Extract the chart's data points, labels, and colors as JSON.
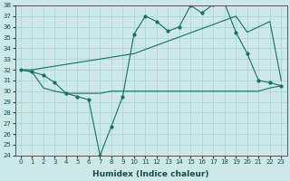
{
  "xlabel": "Humidex (Indice chaleur)",
  "bg_color": "#cce8e8",
  "line_color": "#1a6e60",
  "grid_color": "#a8d0d0",
  "xlim_min": -0.5,
  "xlim_max": 23.5,
  "ylim_min": 24,
  "ylim_max": 38,
  "xticks": [
    0,
    1,
    2,
    3,
    4,
    5,
    6,
    7,
    8,
    9,
    10,
    11,
    12,
    13,
    14,
    15,
    16,
    17,
    18,
    19,
    20,
    21,
    22,
    23
  ],
  "yticks": [
    24,
    25,
    26,
    27,
    28,
    29,
    30,
    31,
    32,
    33,
    34,
    35,
    36,
    37,
    38
  ],
  "line1_x": [
    0,
    1,
    2,
    3,
    4,
    5,
    6,
    7,
    8,
    9,
    10,
    11,
    12,
    13,
    14,
    15,
    16,
    17,
    18,
    19,
    20,
    21,
    22,
    23
  ],
  "line1_y": [
    32.0,
    31.8,
    31.5,
    30.8,
    29.8,
    29.5,
    29.2,
    24.0,
    26.7,
    29.5,
    35.3,
    37.0,
    36.5,
    35.6,
    36.0,
    38.0,
    37.3,
    38.1,
    38.2,
    35.5,
    33.5,
    31.0,
    30.8,
    30.5
  ],
  "line2_x": [
    0,
    1,
    10,
    19,
    20,
    21,
    22,
    23
  ],
  "line2_y": [
    32.0,
    32.0,
    33.5,
    37.0,
    35.5,
    36.0,
    36.5,
    31.0
  ],
  "line3_x": [
    0,
    1,
    2,
    3,
    4,
    5,
    6,
    7,
    8,
    9,
    10,
    11,
    12,
    13,
    14,
    15,
    16,
    17,
    18,
    19,
    20,
    21,
    22,
    23
  ],
  "line3_y": [
    32.0,
    31.8,
    30.3,
    30.0,
    29.8,
    29.8,
    29.8,
    29.8,
    30.0,
    30.0,
    30.0,
    30.0,
    30.0,
    30.0,
    30.0,
    30.0,
    30.0,
    30.0,
    30.0,
    30.0,
    30.0,
    30.0,
    30.3,
    30.5
  ]
}
